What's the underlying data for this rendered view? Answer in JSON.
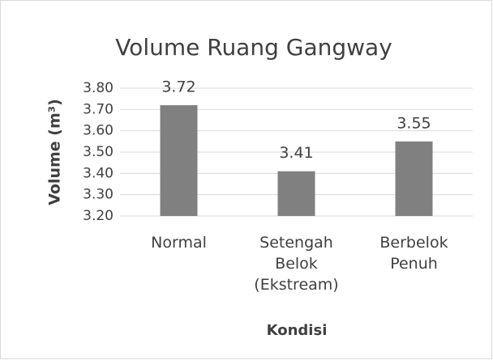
{
  "chart_data": {
    "type": "bar",
    "title": "Volume Ruang Gangway",
    "x_label": "Kondisi",
    "y_label": "Volume (m³)",
    "categories": [
      "Normal",
      "Setengah Belok (Ekstream)",
      "Berbelok Penuh"
    ],
    "values": [
      3.72,
      3.41,
      3.55
    ],
    "color": "#808080",
    "ylim": [
      3.2,
      3.8
    ],
    "yticks": [
      {
        "value": 3.2,
        "label": "3.20"
      },
      {
        "value": 3.3,
        "label": "3.30"
      },
      {
        "value": 3.4,
        "label": "3.40"
      },
      {
        "value": 3.5,
        "label": "3.50"
      },
      {
        "value": 3.6,
        "label": "3.60"
      },
      {
        "value": 3.7,
        "label": "3.70"
      },
      {
        "value": 3.8,
        "label": "3.80"
      }
    ],
    "grid": true
  }
}
